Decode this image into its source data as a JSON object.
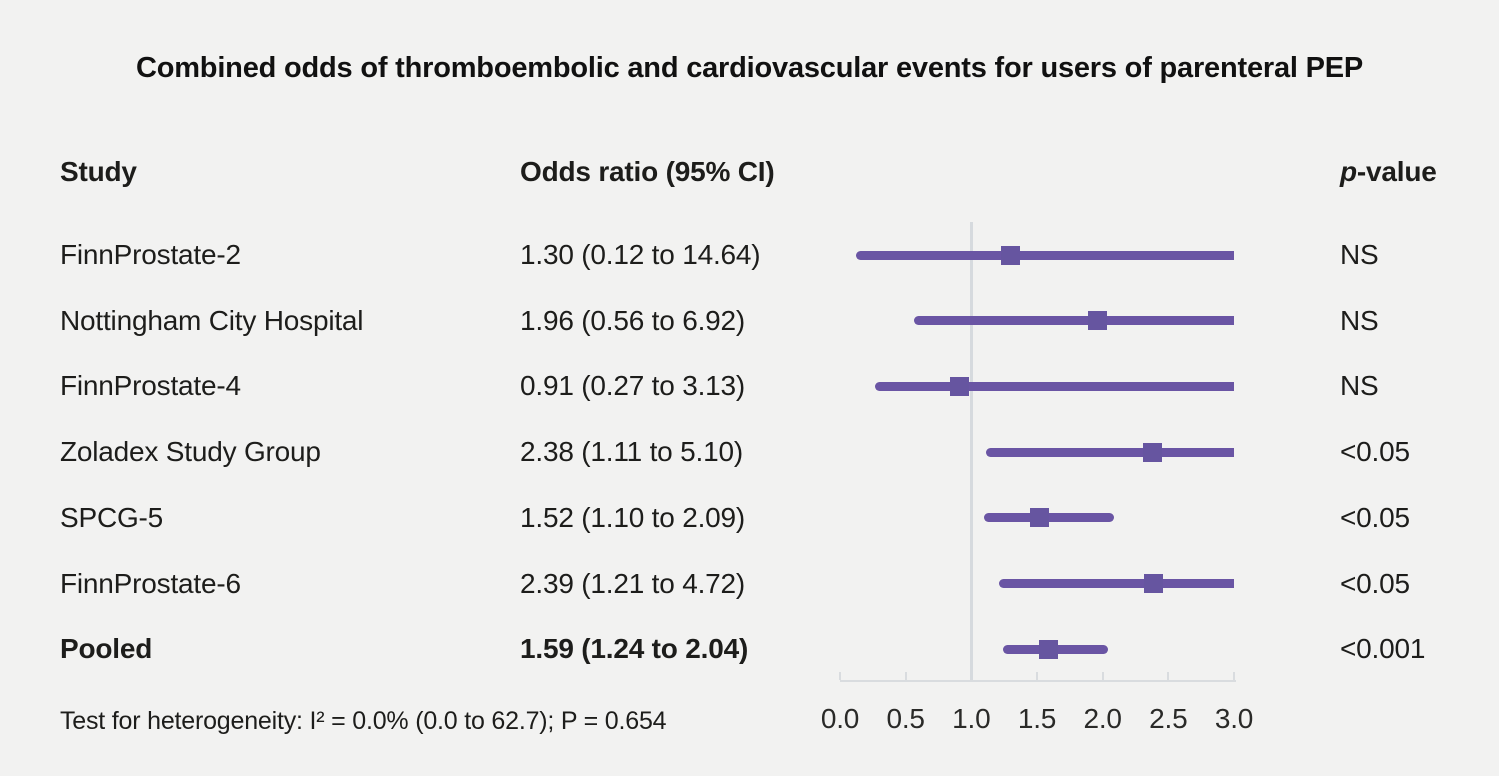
{
  "title": "Combined odds of thromboembolic and cardiovascular events for users of parenteral PEP",
  "columns": {
    "study": "Study",
    "odds_ratio": "Odds ratio (95% CI)",
    "p_value_italic": "p",
    "p_value_rest": "-value"
  },
  "footer": "Test for heterogeneity: I² = 0.0% (0.0 to 62.7); P = 0.654",
  "colors": {
    "background": "#f2f2f1",
    "marker_purple": "#6655a0",
    "line_purple": "#6a55a4",
    "axis_gray": "#d9dcdf",
    "text": "#1d1d1b"
  },
  "chart_data": {
    "type": "forest",
    "title": "Combined odds of thromboembolic and cardiovascular events for users of parenteral PEP",
    "xlabel": "Odds ratio",
    "x_axis": {
      "min": 0.0,
      "max": 3.0,
      "ticks": [
        "0.0",
        "0.5",
        "1.0",
        "1.5",
        "2.0",
        "2.5",
        "3.0"
      ],
      "tick_values": [
        0.0,
        0.5,
        1.0,
        1.5,
        2.0,
        2.5,
        3.0
      ],
      "reference_line": 1.0
    },
    "rows": [
      {
        "study": "FinnProstate-2",
        "or_label": "1.30 (0.12 to 14.64)",
        "estimate": 1.3,
        "ci_low": 0.12,
        "ci_high": 14.64,
        "p_value": "NS",
        "bold": false
      },
      {
        "study": "Nottingham City Hospital",
        "or_label": "1.96 (0.56 to 6.92)",
        "estimate": 1.96,
        "ci_low": 0.56,
        "ci_high": 6.92,
        "p_value": "NS",
        "bold": false
      },
      {
        "study": "FinnProstate-4",
        "or_label": "0.91 (0.27 to 3.13)",
        "estimate": 0.91,
        "ci_low": 0.27,
        "ci_high": 3.13,
        "p_value": "NS",
        "bold": false
      },
      {
        "study": "Zoladex Study Group",
        "or_label": "2.38 (1.11 to 5.10)",
        "estimate": 2.38,
        "ci_low": 1.11,
        "ci_high": 5.1,
        "p_value": "<0.05",
        "bold": false
      },
      {
        "study": "SPCG-5",
        "or_label": "1.52 (1.10 to 2.09)",
        "estimate": 1.52,
        "ci_low": 1.1,
        "ci_high": 2.09,
        "p_value": "<0.05",
        "bold": false
      },
      {
        "study": "FinnProstate-6",
        "or_label": "2.39 (1.21 to 4.72)",
        "estimate": 2.39,
        "ci_low": 1.21,
        "ci_high": 4.72,
        "p_value": "<0.05",
        "bold": false
      },
      {
        "study": "Pooled",
        "or_label": "1.59 (1.24 to 2.04)",
        "estimate": 1.59,
        "ci_low": 1.24,
        "ci_high": 2.04,
        "p_value": "<0.001",
        "bold": true
      }
    ]
  }
}
